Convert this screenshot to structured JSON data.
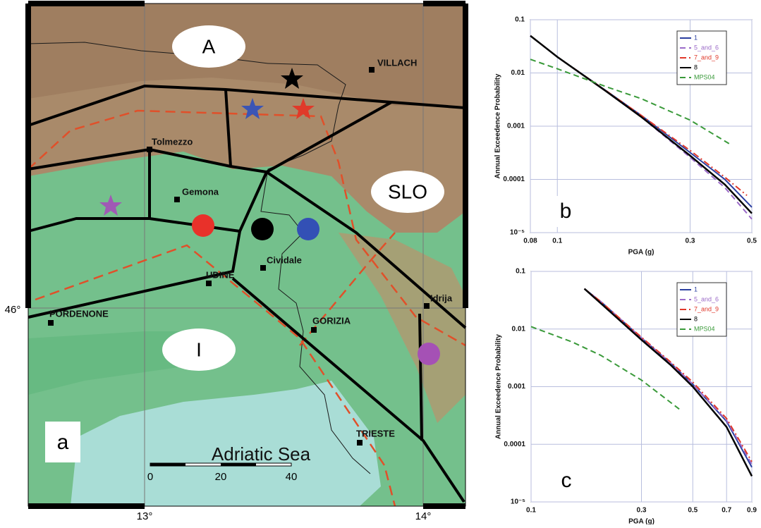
{
  "map": {
    "regions": [
      "A",
      "SLO",
      "I"
    ],
    "panel_label": "a",
    "sea": "Adriatic Sea",
    "cities": [
      "VILLACH",
      "Tolmezzo",
      "Gemona",
      "Cividale",
      "UDINE",
      "PORDENONE",
      "GORIZIA",
      "Idrija",
      "TRIESTE"
    ],
    "lon_labels": [
      "13°",
      "14°"
    ],
    "lat_label": "46°",
    "scale_labels": [
      "0",
      "20",
      "40"
    ]
  },
  "chart_data": [
    {
      "type": "line",
      "panel_label": "b",
      "xlabel": "PGA (g)",
      "ylabel": "Annual Exceedence Probability",
      "xscale": "log",
      "yscale": "log",
      "grid": true,
      "legend": "upper right",
      "xlim": [
        0.08,
        0.5
      ],
      "xticks": [
        0.08,
        0.1,
        0.3,
        0.5
      ],
      "ylim": [
        1e-05,
        0.1
      ],
      "yticks": [
        0.1,
        0.01,
        0.001,
        0.0001,
        {
          "value": 1e-05,
          "label": "10⁻⁵"
        }
      ],
      "series": [
        {
          "name": "1",
          "color": "#2b3fa0",
          "dash": "solid",
          "x": [
            0.08,
            0.1,
            0.15,
            0.2,
            0.3,
            0.4,
            0.5
          ],
          "values": [
            0.05,
            0.02,
            0.0046,
            0.0016,
            0.00032,
            0.0001,
            3e-05
          ]
        },
        {
          "name": "5_and_6",
          "color": "#9b6bc8",
          "dash": "dashed",
          "x": [
            0.08,
            0.1,
            0.15,
            0.2,
            0.3,
            0.4,
            0.5
          ],
          "values": [
            0.05,
            0.02,
            0.0045,
            0.0015,
            0.00026,
            7e-05,
            1.8e-05
          ]
        },
        {
          "name": "7_and_9",
          "color": "#e0382a",
          "dash": "dashdot",
          "x": [
            0.08,
            0.1,
            0.15,
            0.2,
            0.3,
            0.4,
            0.48
          ],
          "values": [
            0.05,
            0.02,
            0.0046,
            0.0016,
            0.00035,
            0.00011,
            5e-05
          ]
        },
        {
          "name": "8",
          "color": "#000000",
          "dash": "solid",
          "x": [
            0.08,
            0.1,
            0.15,
            0.2,
            0.3,
            0.4,
            0.5
          ],
          "values": [
            0.05,
            0.02,
            0.0045,
            0.0015,
            0.00028,
            8e-05,
            2.3e-05
          ]
        },
        {
          "name": "MPS04",
          "color": "#3a9a3a",
          "dash": "dashed",
          "x": [
            0.08,
            0.1,
            0.15,
            0.2,
            0.3,
            0.42
          ],
          "values": [
            0.018,
            0.012,
            0.0055,
            0.0033,
            0.0013,
            0.00045
          ]
        }
      ]
    },
    {
      "type": "line",
      "panel_label": "c",
      "xlabel": "PGA (g)",
      "ylabel": "Annual Exceedence Probability",
      "xscale": "log",
      "yscale": "log",
      "grid": true,
      "legend": "upper right",
      "xlim": [
        0.1,
        0.9
      ],
      "xticks": [
        0.1,
        0.3,
        0.5,
        0.7,
        0.9
      ],
      "ylim": [
        1e-05,
        0.1
      ],
      "yticks": [
        0.1,
        0.01,
        0.001,
        0.0001,
        {
          "value": 1e-05,
          "label": "10⁻⁵"
        }
      ],
      "series": [
        {
          "name": "1",
          "color": "#2b3fa0",
          "dash": "solid",
          "x": [
            0.17,
            0.2,
            0.3,
            0.4,
            0.5,
            0.7,
            0.9
          ],
          "values": [
            0.05,
            0.03,
            0.007,
            0.0026,
            0.0011,
            0.00025,
            4e-05
          ]
        },
        {
          "name": "5_and_6",
          "color": "#9b6bc8",
          "dash": "dashed",
          "x": [
            0.17,
            0.2,
            0.3,
            0.4,
            0.5,
            0.7,
            0.9
          ],
          "values": [
            0.05,
            0.03,
            0.007,
            0.0026,
            0.0011,
            0.00026,
            4.5e-05
          ]
        },
        {
          "name": "7_and_9",
          "color": "#e0382a",
          "dash": "dashdot",
          "x": [
            0.17,
            0.2,
            0.3,
            0.4,
            0.5,
            0.7,
            0.9
          ],
          "values": [
            0.05,
            0.03,
            0.0072,
            0.0027,
            0.0012,
            0.00028,
            5e-05
          ]
        },
        {
          "name": "8",
          "color": "#000000",
          "dash": "solid",
          "x": [
            0.17,
            0.2,
            0.3,
            0.4,
            0.5,
            0.7,
            0.9
          ],
          "values": [
            0.05,
            0.028,
            0.0065,
            0.0024,
            0.001,
            0.0002,
            2.8e-05
          ]
        },
        {
          "name": "MPS04",
          "color": "#3a9a3a",
          "dash": "dashed",
          "x": [
            0.1,
            0.15,
            0.2,
            0.3,
            0.44
          ],
          "values": [
            0.011,
            0.006,
            0.0035,
            0.0013,
            0.0004
          ]
        }
      ]
    }
  ]
}
